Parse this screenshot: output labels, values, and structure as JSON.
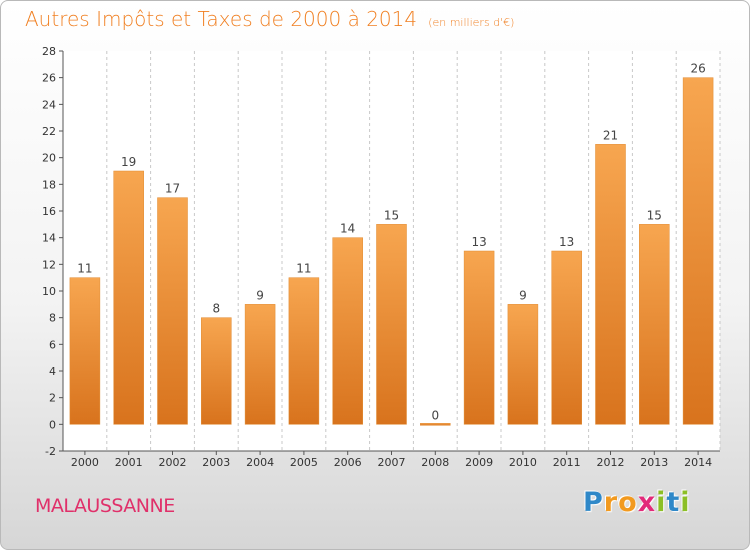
{
  "title": {
    "main": "Autres Impôts et Taxes de 2000 à 2014",
    "unit": "(en milliers d'€)"
  },
  "commune": "MALAUSSANNE",
  "logo": {
    "text": "Proxiti",
    "letters": [
      {
        "char": "P",
        "color": "#2f88c8"
      },
      {
        "char": "r",
        "color": "#f29a1f"
      },
      {
        "char": "o",
        "color": "#f29a1f"
      },
      {
        "char": "x",
        "color": "#e22a7a"
      },
      {
        "char": "i",
        "color": "#8cbf26"
      },
      {
        "char": "t",
        "color": "#2f88c8"
      },
      {
        "char": "i",
        "color": "#8cbf26"
      }
    ]
  },
  "colors": {
    "bar_top": "#f7a650",
    "bar_bottom": "#d8731d",
    "grid": "#c8c8c8",
    "axis_text": "#333333",
    "value_text": "#444444"
  },
  "chart_data": {
    "type": "bar",
    "categories": [
      "2000",
      "2001",
      "2002",
      "2003",
      "2004",
      "2005",
      "2006",
      "2007",
      "2008",
      "2009",
      "2010",
      "2011",
      "2012",
      "2013",
      "2014"
    ],
    "values": [
      11,
      19,
      17,
      8,
      9,
      11,
      14,
      15,
      0,
      13,
      9,
      13,
      21,
      15,
      26
    ],
    "value_labels": [
      "11",
      "19",
      "17",
      "8",
      "9",
      "11",
      "14",
      "15",
      "0",
      "13",
      "9",
      "13",
      "21",
      "15",
      "26"
    ],
    "title": "Autres Impôts et Taxes de 2000 à 2014",
    "subtitle": "(en milliers d'€)",
    "xlabel": "",
    "ylabel": "",
    "ylim": [
      -2,
      28
    ],
    "yticks": [
      -2,
      0,
      2,
      4,
      6,
      8,
      10,
      12,
      14,
      16,
      18,
      20,
      22,
      24,
      26,
      28
    ],
    "grid": true,
    "grid_axis": "x",
    "legend": "none"
  }
}
